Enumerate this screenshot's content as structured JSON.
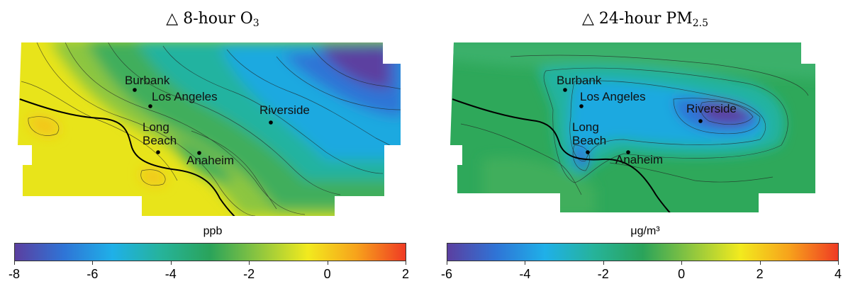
{
  "panels": [
    {
      "title_prefix": "△ 8-hour O",
      "title_sub": "3",
      "unit": "ppb",
      "colorbar": {
        "min": -8,
        "max": 2,
        "ticks": [
          "-8",
          "-6",
          "-4",
          "-2",
          "0",
          "2"
        ],
        "colors": [
          "#5b3fa0",
          "#2f74d6",
          "#1fb0e8",
          "#26b39a",
          "#2aa35a",
          "#8ec63f",
          "#f2ea1e",
          "#f7a21b",
          "#ef3b24"
        ]
      },
      "cities": [
        {
          "name": "Burbank",
          "lines": [
            "Burbank"
          ]
        },
        {
          "name": "Los Angeles",
          "lines": [
            "Los Angeles"
          ]
        },
        {
          "name": "Riverside",
          "lines": [
            "Riverside"
          ]
        },
        {
          "name": "Long Beach",
          "lines": [
            "Long",
            "Beach"
          ]
        },
        {
          "name": "Anaheim",
          "lines": [
            "Anaheim"
          ]
        }
      ]
    },
    {
      "title_prefix": "△ 24-hour PM",
      "title_sub": "2.5",
      "unit": "μg/m³",
      "colorbar": {
        "min": -6,
        "max": 4,
        "ticks": [
          "-6",
          "-4",
          "-2",
          "0",
          "2",
          "4"
        ],
        "colors": [
          "#5b3fa0",
          "#2f74d6",
          "#1fb0e8",
          "#26b39a",
          "#2aa35a",
          "#8ec63f",
          "#f2ea1e",
          "#f7a21b",
          "#ef3b24"
        ]
      },
      "cities": [
        {
          "name": "Burbank",
          "lines": [
            "Burbank"
          ]
        },
        {
          "name": "Los Angeles",
          "lines": [
            "Los Angeles"
          ]
        },
        {
          "name": "Riverside",
          "lines": [
            "Riverside"
          ]
        },
        {
          "name": "Long Beach",
          "lines": [
            "Long",
            "Beach"
          ]
        },
        {
          "name": "Anaheim",
          "lines": [
            "Anaheim"
          ]
        }
      ]
    }
  ]
}
